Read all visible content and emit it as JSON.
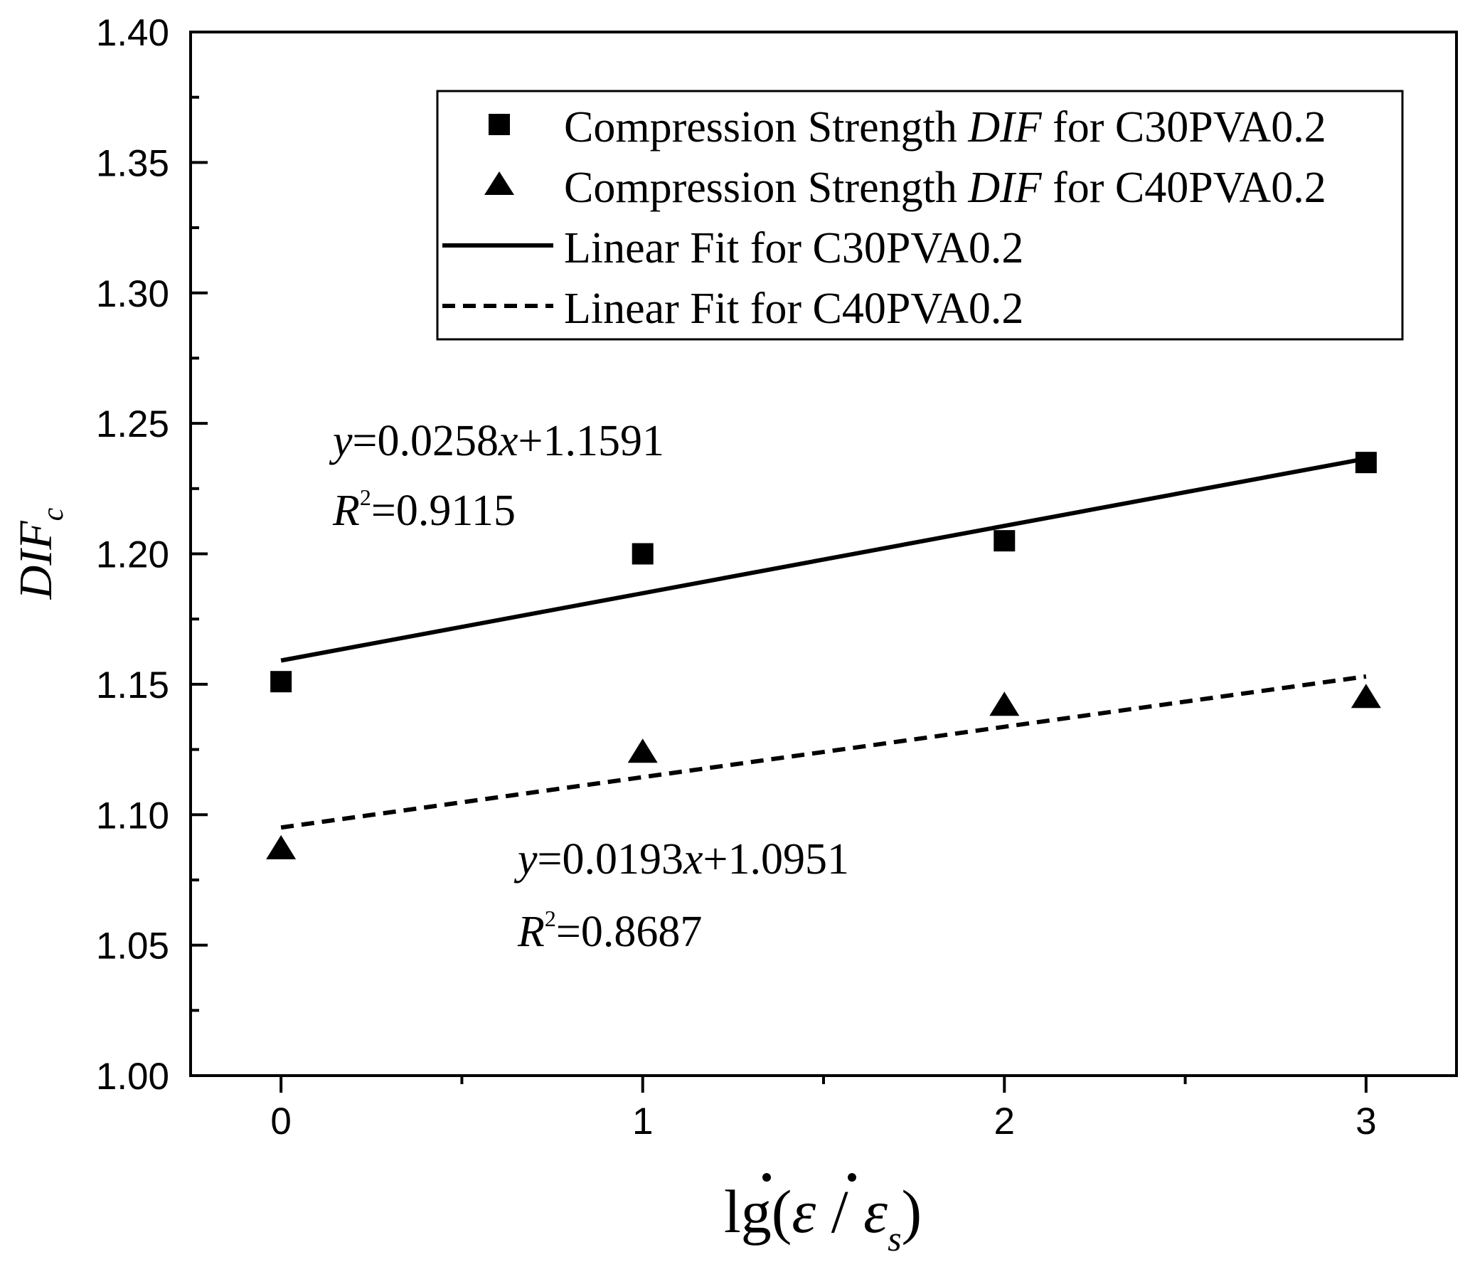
{
  "chart_data": {
    "type": "scatter",
    "title": "",
    "xlabel": {
      "prefix": "lg(",
      "eps": "ε",
      "slash": " / ",
      "eps_sub": "s",
      "suffix": ")"
    },
    "ylabel": {
      "main": "DIF",
      "sub": "c"
    },
    "xlim": [
      -0.25,
      3.25
    ],
    "ylim": [
      1.0,
      1.4
    ],
    "xticks": [
      0,
      1,
      2,
      3
    ],
    "xtick_labels": [
      "0",
      "1",
      "2",
      "3"
    ],
    "yticks": [
      1.0,
      1.05,
      1.1,
      1.15,
      1.2,
      1.25,
      1.3,
      1.35,
      1.4
    ],
    "ytick_labels": [
      "1.00",
      "1.05",
      "1.10",
      "1.15",
      "1.20",
      "1.25",
      "1.30",
      "1.35",
      "1.40"
    ],
    "grid": false,
    "legend_position": "top-right",
    "series": [
      {
        "name": "C30PVA0.2",
        "marker": "square",
        "legend_parts": [
          "Compression Strength ",
          "DIF",
          " for C30PVA0.2"
        ],
        "x": [
          0,
          1,
          2,
          3
        ],
        "y": [
          1.151,
          1.2,
          1.205,
          1.235
        ]
      },
      {
        "name": "C40PVA0.2",
        "marker": "triangle",
        "legend_parts": [
          "Compression Strength ",
          "DIF",
          " for C40PVA0.2"
        ],
        "x": [
          0,
          1,
          2,
          3
        ],
        "y": [
          1.087,
          1.124,
          1.142,
          1.145
        ]
      }
    ],
    "fits": [
      {
        "name": "Linear Fit for C30PVA0.2",
        "style": "solid",
        "slope": 0.0258,
        "intercept": 1.1591,
        "x_range": [
          0,
          3
        ],
        "equation": {
          "y": "y",
          "eq": "=0.0258",
          "x": "x",
          "rest": "+1.1591"
        },
        "r2": {
          "r": "R",
          "sup": "2",
          "value": "=0.9115"
        }
      },
      {
        "name": "Linear Fit for C40PVA0.2",
        "style": "dashed",
        "slope": 0.0193,
        "intercept": 1.0951,
        "x_range": [
          0,
          3
        ],
        "equation": {
          "y": "y",
          "eq": "=0.0193",
          "x": "x",
          "rest": "+1.0951"
        },
        "r2": {
          "r": "R",
          "sup": "2",
          "value": "=0.8687"
        }
      }
    ]
  }
}
